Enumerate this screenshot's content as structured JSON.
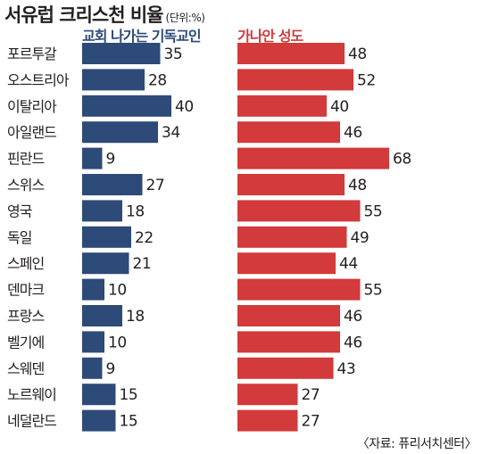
{
  "title": "서유럽 크리스천 비율",
  "unit": "(단위:%)",
  "source": "〈자료: 퓨리서치센터〉",
  "colors": {
    "left": "#2d4a78",
    "right": "#d23a3b",
    "text": "#231f20"
  },
  "chart_data": {
    "type": "bar",
    "orientation": "horizontal",
    "categories": [
      "포르투갈",
      "오스트리아",
      "이탈리아",
      "아일랜드",
      "핀란드",
      "스위스",
      "영국",
      "독일",
      "스페인",
      "덴마크",
      "프랑스",
      "벨기에",
      "스웨덴",
      "노르웨이",
      "네덜란드"
    ],
    "series": [
      {
        "name": "교회 나가는 기독교인",
        "values": [
          35,
          28,
          40,
          34,
          9,
          27,
          18,
          22,
          21,
          10,
          18,
          10,
          9,
          15,
          15
        ]
      },
      {
        "name": "가나안 성도",
        "values": [
          48,
          52,
          40,
          46,
          68,
          48,
          55,
          49,
          44,
          55,
          46,
          46,
          43,
          27,
          27
        ]
      }
    ],
    "data_labels": true,
    "legend": "top"
  }
}
